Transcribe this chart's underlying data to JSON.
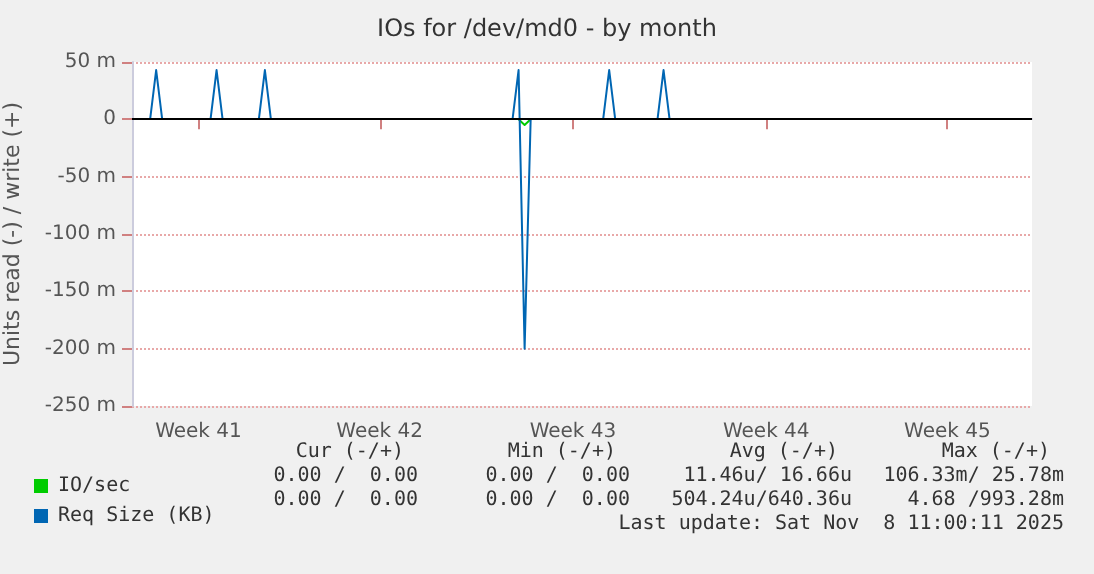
{
  "chart_data": {
    "type": "line",
    "title": "IOs for /dev/md0 - by month",
    "ylabel": "Units read (-) / write (+)",
    "categories": [
      null,
      null,
      null,
      null,
      null,
      null,
      null,
      null,
      null,
      null,
      null,
      "Week 41",
      null,
      null,
      null,
      null,
      null,
      null,
      null,
      null,
      null,
      null,
      null,
      null,
      null,
      null,
      null,
      null,
      null,
      null,
      null,
      null,
      null,
      null,
      null,
      null,
      null,
      null,
      null,
      null,
      null,
      "Week 42",
      null,
      null,
      null,
      null,
      null,
      null,
      null,
      null,
      null,
      null,
      null,
      null,
      null,
      null,
      null,
      null,
      null,
      null,
      null,
      null,
      null,
      null,
      null,
      null,
      null,
      null,
      null,
      null,
      null,
      null,
      null,
      "Week 43",
      null,
      null,
      null,
      null,
      null,
      null,
      null,
      null,
      null,
      null,
      null,
      null,
      null,
      null,
      null,
      null,
      null,
      null,
      null,
      null,
      null,
      null,
      null,
      null,
      null,
      null,
      null,
      null,
      null,
      null,
      null,
      "Week 44",
      null,
      null,
      null,
      null,
      null,
      null,
      null,
      null,
      null,
      null,
      null,
      null,
      null,
      null,
      null,
      null,
      null,
      null,
      null,
      null,
      null,
      null,
      null,
      null,
      null,
      null,
      null,
      null,
      null,
      "Week 45",
      null,
      null,
      null,
      null,
      null,
      null,
      null,
      null,
      null,
      null,
      null,
      null,
      null,
      null
    ],
    "ylim": [
      -250,
      50
    ],
    "yticks": [
      {
        "value": -250,
        "label": "-250 m"
      },
      {
        "value": -200,
        "label": "-200 m"
      },
      {
        "value": -150,
        "label": "-150 m"
      },
      {
        "value": -100,
        "label": "-100 m"
      },
      {
        "value": -50,
        "label": "-50 m"
      },
      0,
      {
        "value": 50,
        "label": "50 m"
      }
    ],
    "grid": "y",
    "legend": "bottom left",
    "marker": "none",
    "line_style": "solid",
    "ref_lines": [
      {
        "axis": "y",
        "value": 0,
        "label": null,
        "color": "#000000"
      }
    ],
    "series": [
      {
        "name": "IO/sec",
        "color": "#00cc00",
        "values": [
          null,
          null,
          null,
          null,
          null,
          null,
          null,
          null,
          null,
          null,
          null,
          null,
          null,
          null,
          null,
          null,
          null,
          null,
          null,
          null,
          null,
          null,
          null,
          null,
          null,
          null,
          null,
          null,
          null,
          null,
          null,
          null,
          null,
          null,
          null,
          null,
          null,
          null,
          null,
          null,
          null,
          null,
          null,
          null,
          null,
          null,
          null,
          null,
          null,
          null,
          null,
          null,
          null,
          null,
          null,
          null,
          null,
          null,
          null,
          null,
          null,
          null,
          null,
          null,
          0,
          -5,
          0,
          null,
          null,
          null,
          null,
          null,
          null,
          null,
          null,
          null,
          null,
          null,
          null,
          null,
          null,
          null,
          null,
          null,
          null,
          null,
          null,
          null,
          null,
          null,
          null,
          null,
          null,
          null,
          null,
          null,
          null,
          null,
          null,
          null,
          null,
          null,
          null,
          null,
          null,
          null,
          null,
          null,
          null,
          null,
          null,
          null,
          null,
          null,
          null,
          null,
          null,
          null,
          null,
          null,
          null,
          null,
          null,
          null,
          null,
          null,
          null,
          null,
          null,
          null,
          null,
          null,
          null,
          null,
          null,
          null,
          null,
          null,
          null,
          null,
          null,
          null,
          null,
          null,
          null,
          null,
          null,
          null,
          null,
          null
        ]
      },
      {
        "name": "Req Size (KB)",
        "color": "#0066b3",
        "values": [
          null,
          null,
          null,
          0,
          43,
          0,
          null,
          null,
          null,
          null,
          null,
          null,
          null,
          0,
          43,
          0,
          null,
          null,
          null,
          null,
          null,
          0,
          43,
          0,
          null,
          null,
          null,
          null,
          null,
          null,
          null,
          null,
          null,
          null,
          null,
          null,
          null,
          null,
          null,
          null,
          null,
          null,
          null,
          null,
          null,
          null,
          null,
          null,
          null,
          null,
          null,
          null,
          null,
          null,
          null,
          null,
          null,
          null,
          null,
          null,
          null,
          null,
          null,
          0,
          43,
          -200,
          0,
          null,
          null,
          null,
          null,
          null,
          null,
          null,
          null,
          null,
          null,
          null,
          0,
          43,
          0,
          null,
          null,
          null,
          null,
          null,
          null,
          0,
          43,
          0,
          null,
          null,
          null,
          null,
          null,
          null,
          null,
          null,
          null,
          null,
          null,
          null,
          null,
          null,
          null,
          null,
          null,
          null,
          null,
          null,
          null,
          null,
          null,
          null,
          null,
          null,
          null,
          null,
          null,
          null,
          null,
          null,
          null,
          null,
          null,
          null,
          null,
          null,
          null,
          null,
          null,
          null,
          null,
          null,
          null,
          null,
          null,
          null,
          null,
          null,
          null,
          null,
          null,
          null,
          null,
          null,
          null,
          null,
          null,
          null
        ]
      }
    ],
    "annotations": [
      "Cur (-/+)",
      "Min (-/+)",
      "Avg (-/+)",
      "Max (-/+)",
      "0.00 /  0.00",
      "0.00 /  0.00",
      "11.46u/ 16.66u",
      "106.33m/ 25.78m",
      "0.00 /  0.00",
      "0.00 /  0.00",
      "504.24u/640.36u",
      "4.68 /993.28m",
      "Last update: Sat Nov  8 11:00:11 2025"
    ]
  }
}
